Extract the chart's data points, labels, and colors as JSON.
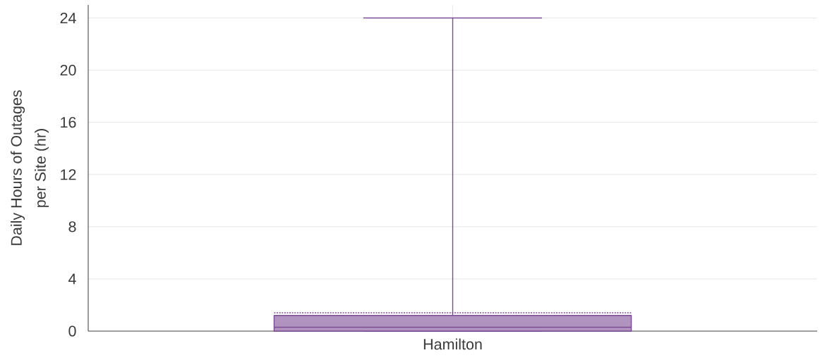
{
  "chart_data": {
    "type": "box",
    "ylabel": "Daily Hours of Outages per Site (hr)",
    "categories": [
      "Hamilton"
    ],
    "series": [
      {
        "color": "#7b4b94",
        "boxes": [
          {
            "low": 0,
            "q1": 0,
            "median": 0.3,
            "q3": 1.2,
            "high": 24,
            "mean": 1.4
          }
        ]
      }
    ],
    "ylim": [
      0,
      25
    ],
    "yticks": [
      0,
      4,
      8,
      12,
      16,
      20,
      24
    ],
    "grid": true
  }
}
